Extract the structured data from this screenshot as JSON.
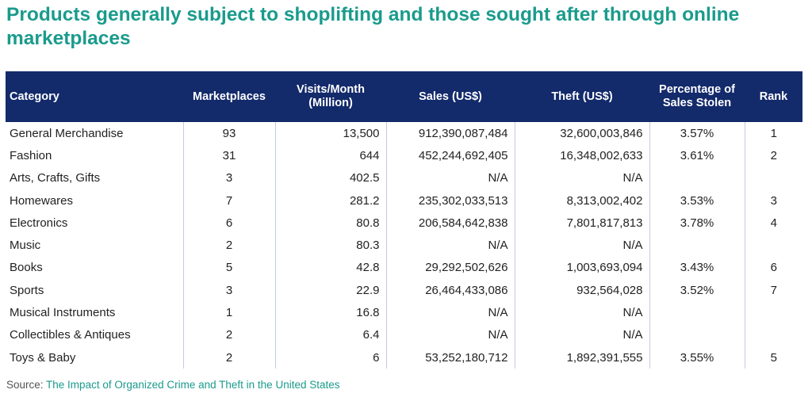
{
  "title": "Products generally subject to shoplifting and those sought after through online marketplaces",
  "colors": {
    "title": "#1a9b8c",
    "header_bg": "#132a6b",
    "link": "#1a9b8c"
  },
  "table": {
    "headers": [
      "Category",
      "Marketplaces",
      "Visits/Month (Million)",
      "Sales (US$)",
      "Theft (US$)",
      "Percentage of Sales Stolen",
      "Rank"
    ],
    "rows": [
      [
        "General Merchandise",
        "93",
        "13,500",
        "912,390,087,484",
        "32,600,003,846",
        "3.57%",
        "1"
      ],
      [
        "Fashion",
        "31",
        "644",
        "452,244,692,405",
        "16,348,002,633",
        "3.61%",
        "2"
      ],
      [
        "Arts, Crafts, Gifts",
        "3",
        "402.5",
        "N/A",
        "N/A",
        "",
        ""
      ],
      [
        "Homewares",
        "7",
        "281.2",
        "235,302,033,513",
        "8,313,002,402",
        "3.53%",
        "3"
      ],
      [
        "Electronics",
        "6",
        "80.8",
        "206,584,642,838",
        "7,801,817,813",
        "3.78%",
        "4"
      ],
      [
        "Music",
        "2",
        "80.3",
        "N/A",
        "N/A",
        "",
        ""
      ],
      [
        "Books",
        "5",
        "42.8",
        "29,292,502,626",
        "1,003,693,094",
        "3.43%",
        "6"
      ],
      [
        "Sports",
        "3",
        "22.9",
        "26,464,433,086",
        "932,564,028",
        "3.52%",
        "7"
      ],
      [
        "Musical Instruments",
        "1",
        "16.8",
        "N/A",
        "N/A",
        "",
        ""
      ],
      [
        "Collectibles & Antiques",
        "2",
        "6.4",
        "N/A",
        "N/A",
        "",
        ""
      ],
      [
        "Toys & Baby",
        "2",
        "6",
        "53,252,180,712",
        "1,892,391,555",
        "3.55%",
        "5"
      ]
    ]
  },
  "source": {
    "label": "Source:",
    "link_text": "The Impact of Organized Crime and Theft in the United States"
  }
}
